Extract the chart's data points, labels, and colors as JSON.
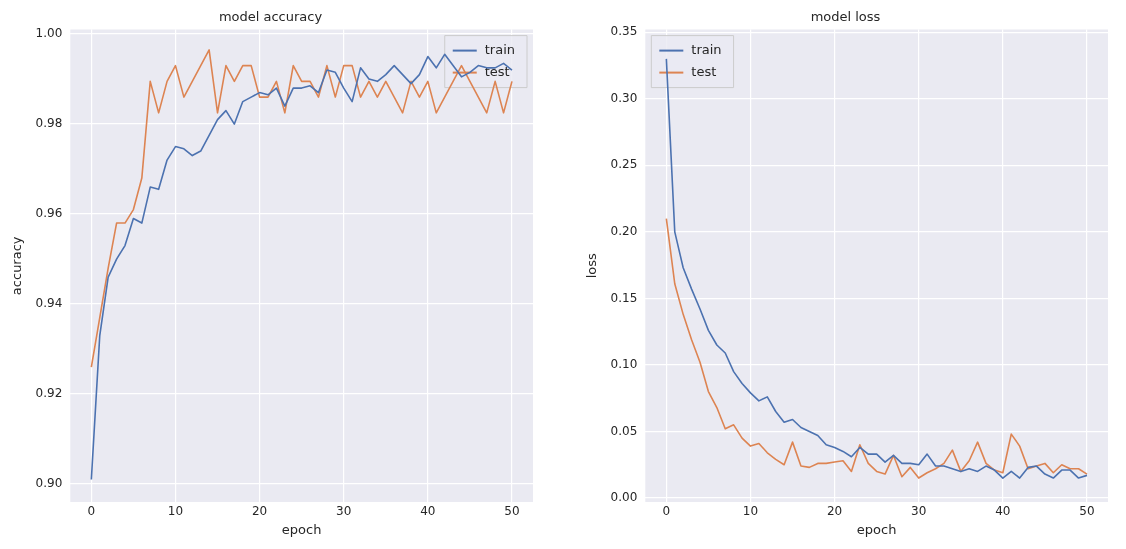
{
  "chart_data": [
    {
      "type": "line",
      "title": "model accuracy",
      "xlabel": "epoch",
      "ylabel": "accuracy",
      "x": [
        0,
        1,
        2,
        3,
        4,
        5,
        6,
        7,
        8,
        9,
        10,
        11,
        12,
        13,
        14,
        15,
        16,
        17,
        18,
        19,
        20,
        21,
        22,
        23,
        24,
        25,
        26,
        27,
        28,
        29,
        30,
        31,
        32,
        33,
        34,
        35,
        36,
        37,
        38,
        39,
        40,
        41,
        42,
        43,
        44,
        45,
        46,
        47,
        48,
        49,
        50
      ],
      "xlim": [
        -2.5,
        52.5
      ],
      "xticks": [
        0,
        10,
        20,
        30,
        40,
        50
      ],
      "ylim": [
        0.896,
        1.001
      ],
      "yticks": [
        {
          "value": 0.9,
          "label": "0.90"
        },
        {
          "value": 0.92,
          "label": "0.92"
        },
        {
          "value": 0.94,
          "label": "0.94"
        },
        {
          "value": 0.96,
          "label": "0.96"
        },
        {
          "value": 0.98,
          "label": "0.98"
        },
        {
          "value": 1.0,
          "label": "1.00"
        }
      ],
      "grid": true,
      "legend": "top right",
      "series": [
        {
          "name": "train",
          "color": "#4c72b0",
          "values": [
            0.901,
            0.933,
            0.946,
            0.95,
            0.953,
            0.959,
            0.958,
            0.966,
            0.9655,
            0.972,
            0.975,
            0.9745,
            0.973,
            0.974,
            0.9775,
            0.981,
            0.983,
            0.98,
            0.985,
            0.986,
            0.987,
            0.9865,
            0.988,
            0.984,
            0.988,
            0.988,
            0.9885,
            0.987,
            0.992,
            0.9915,
            0.988,
            0.985,
            0.9925,
            0.99,
            0.9895,
            0.991,
            0.993,
            0.991,
            0.989,
            0.991,
            0.995,
            0.9925,
            0.9955,
            0.993,
            0.9905,
            0.9915,
            0.993,
            0.9925,
            0.9925,
            0.9935,
            0.992
          ]
        },
        {
          "name": "test",
          "color": "#dd8452",
          "values": [
            0.926,
            0.937,
            0.948,
            0.958,
            0.958,
            0.961,
            0.968,
            0.9895,
            0.9825,
            0.9895,
            0.993,
            0.986,
            0.9895,
            0.993,
            0.9965,
            0.9825,
            0.993,
            0.9895,
            0.993,
            0.993,
            0.986,
            0.986,
            0.9895,
            0.9825,
            0.993,
            0.9895,
            0.9895,
            0.986,
            0.993,
            0.986,
            0.993,
            0.993,
            0.986,
            0.9895,
            0.986,
            0.9895,
            0.986,
            0.9825,
            0.9895,
            0.986,
            0.9895,
            0.9825,
            0.986,
            0.9895,
            0.993,
            0.9895,
            0.986,
            0.9825,
            0.9895,
            0.9825,
            0.9895
          ]
        }
      ]
    },
    {
      "type": "line",
      "title": "model loss",
      "xlabel": "epoch",
      "ylabel": "loss",
      "x": [
        0,
        1,
        2,
        3,
        4,
        5,
        6,
        7,
        8,
        9,
        10,
        11,
        12,
        13,
        14,
        15,
        16,
        17,
        18,
        19,
        20,
        21,
        22,
        23,
        24,
        25,
        26,
        27,
        28,
        29,
        30,
        31,
        32,
        33,
        34,
        35,
        36,
        37,
        38,
        39,
        40,
        41,
        42,
        43,
        44,
        45,
        46,
        47,
        48,
        49,
        50
      ],
      "xlim": [
        -2.5,
        52.5
      ],
      "xticks": [
        0,
        10,
        20,
        30,
        40,
        50
      ],
      "ylim": [
        -0.003,
        0.352
      ],
      "yticks": [
        {
          "value": 0,
          "label": "0.00"
        },
        {
          "value": 0.05,
          "label": "0.05"
        },
        {
          "value": 0.1,
          "label": "0.10"
        },
        {
          "value": 0.15,
          "label": "0.15"
        },
        {
          "value": 0.2,
          "label": "0.20"
        },
        {
          "value": 0.25,
          "label": "0.25"
        },
        {
          "value": 0.3,
          "label": "0.30"
        },
        {
          "value": 0.35,
          "label": "0.35"
        }
      ],
      "grid": true,
      "legend": "top left",
      "series": [
        {
          "name": "train",
          "color": "#4c72b0",
          "values": [
            0.33,
            0.2,
            0.173,
            0.157,
            0.142,
            0.126,
            0.115,
            0.109,
            0.095,
            0.086,
            0.079,
            0.073,
            0.076,
            0.065,
            0.057,
            0.059,
            0.053,
            0.05,
            0.047,
            0.04,
            0.038,
            0.035,
            0.031,
            0.038,
            0.033,
            0.033,
            0.027,
            0.032,
            0.026,
            0.026,
            0.025,
            0.033,
            0.024,
            0.024,
            0.022,
            0.02,
            0.022,
            0.02,
            0.024,
            0.021,
            0.015,
            0.02,
            0.015,
            0.023,
            0.024,
            0.018,
            0.015,
            0.021,
            0.021,
            0.015,
            0.017
          ]
        },
        {
          "name": "test",
          "color": "#dd8452",
          "values": [
            0.21,
            0.161,
            0.138,
            0.119,
            0.102,
            0.08,
            0.068,
            0.052,
            0.055,
            0.045,
            0.039,
            0.041,
            0.034,
            0.029,
            0.025,
            0.042,
            0.024,
            0.023,
            0.026,
            0.026,
            0.027,
            0.028,
            0.02,
            0.04,
            0.026,
            0.02,
            0.018,
            0.032,
            0.016,
            0.023,
            0.015,
            0.019,
            0.022,
            0.026,
            0.036,
            0.02,
            0.028,
            0.042,
            0.026,
            0.021,
            0.019,
            0.048,
            0.039,
            0.022,
            0.024,
            0.026,
            0.019,
            0.025,
            0.022,
            0.022,
            0.018
          ]
        }
      ]
    }
  ]
}
